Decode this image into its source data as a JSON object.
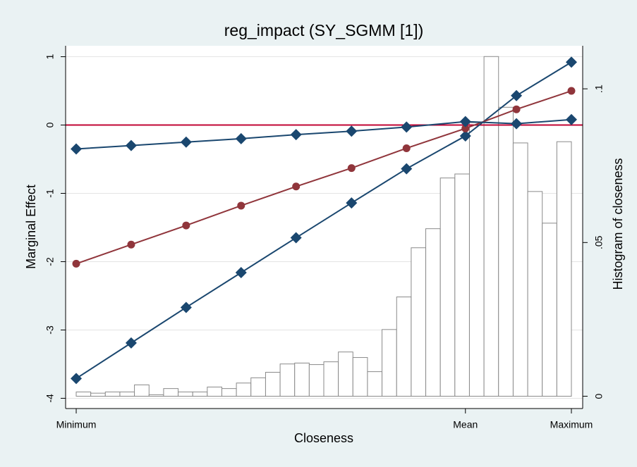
{
  "chart_data": {
    "type": "line",
    "title": "reg_impact (SY_SGMM [1])",
    "x_label": "Closeness",
    "y_label": "Marginal Effect",
    "y2_label": "Histogram of closeness",
    "x": [
      0,
      0.111,
      0.222,
      0.333,
      0.444,
      0.556,
      0.667,
      0.786,
      0.889,
      1
    ],
    "series": [
      {
        "color": "#1a476f",
        "marker": "diamond",
        "values": [
          -3.71,
          -3.19,
          -2.67,
          -2.16,
          -1.65,
          -1.14,
          -0.64,
          -0.16,
          0.43,
          0.92
        ]
      },
      {
        "color": "#90353b",
        "marker": "circle",
        "values": [
          -2.03,
          -1.75,
          -1.47,
          -1.18,
          -0.9,
          -0.63,
          -0.34,
          -0.05,
          0.23,
          0.5
        ]
      },
      {
        "color": "#1a476f",
        "marker": "diamond",
        "values": [
          -0.35,
          -0.3,
          -0.25,
          -0.2,
          -0.14,
          -0.09,
          -0.03,
          0.05,
          0.02,
          0.08
        ]
      }
    ],
    "histogram": {
      "axis": "y2",
      "fill": "#ffffff",
      "stroke": "#8a8a8a",
      "bins": [
        0,
        0.0294,
        0.0588,
        0.0882,
        0.1176,
        0.1471,
        0.1765,
        0.2059,
        0.2353,
        0.2647,
        0.2941,
        0.3235,
        0.3529,
        0.3824,
        0.4118,
        0.4412,
        0.4706,
        0.5,
        0.5294,
        0.5588,
        0.5882,
        0.6176,
        0.6471,
        0.6765,
        0.7059,
        0.7353,
        0.7647,
        0.7941,
        0.8235,
        0.8529,
        0.8824,
        0.9118,
        0.9412,
        0.9706,
        1
      ],
      "counts": [
        0.0014,
        0.001,
        0.0014,
        0.0014,
        0.0037,
        0.0005,
        0.0025,
        0.0014,
        0.0014,
        0.003,
        0.0025,
        0.0043,
        0.006,
        0.0078,
        0.0105,
        0.0108,
        0.0103,
        0.0112,
        0.0144,
        0.0126,
        0.008,
        0.0217,
        0.0323,
        0.0483,
        0.0545,
        0.071,
        0.0723,
        0.089,
        0.1105,
        0.094,
        0.0824,
        0.0666,
        0.0563,
        0.0828
      ]
    },
    "yline": {
      "value": 0,
      "color": "#c10534"
    },
    "xlim": [
      -0.0214,
      1.0228
    ],
    "xticks": [
      {
        "value": 0,
        "label": "Minimum"
      },
      {
        "value": 0.786,
        "label": "Mean"
      },
      {
        "value": 1,
        "label": "Maximum"
      }
    ],
    "ylim": [
      -4.15,
      1.16
    ],
    "yticks": [
      -4,
      -3,
      -2,
      -1,
      0,
      1
    ],
    "y2lim": [
      -0.004,
      0.114
    ],
    "y2ticks": [
      0,
      {
        "value": 0.05,
        "label": ".05"
      },
      {
        "value": 0.1,
        "label": ".1"
      }
    ],
    "grid": true
  }
}
